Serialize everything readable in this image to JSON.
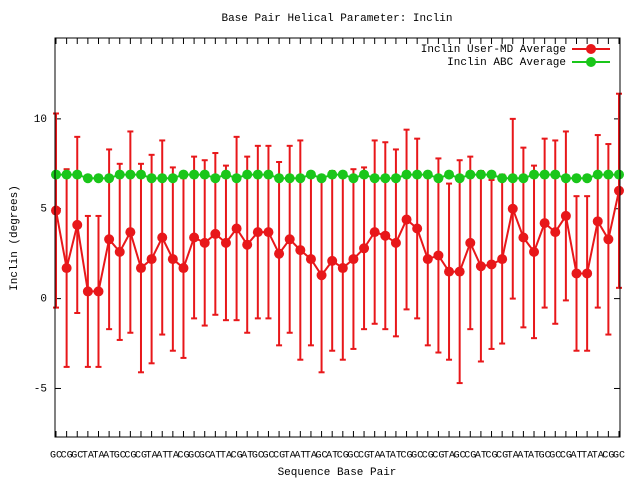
{
  "chart_data": {
    "type": "errorbar-line",
    "title": "Base Pair Helical Parameter: Inclin",
    "x_label": "Sequence Base Pair",
    "y_label": "Inclin (degrees)",
    "categories": [
      "GC",
      "CG",
      "GC",
      "TA",
      "TA",
      "AT",
      "GC",
      "CG",
      "CG",
      "TA",
      "AT",
      "TA",
      "CG",
      "GC",
      "GC",
      "AT",
      "TA",
      "CG",
      "AT",
      "GC",
      "GC",
      "CG",
      "TA",
      "AT",
      "TA",
      "GC",
      "AT",
      "CG",
      "GC",
      "CG",
      "TA",
      "AT",
      "AT",
      "CG",
      "GC",
      "CG",
      "CG",
      "TA",
      "GC",
      "CG",
      "AT",
      "CG",
      "CG",
      "TA",
      "AT",
      "AT",
      "GC",
      "GC",
      "CG",
      "AT",
      "TA",
      "TA",
      "CG",
      "GC"
    ],
    "ylim": [
      -7.7,
      14.5
    ],
    "yticks": [
      -5,
      0,
      5,
      10
    ],
    "legend": "top-right",
    "series": [
      {
        "name": "Inclin User-MD Average",
        "color": "#e8171a",
        "values": [
          4.9,
          1.7,
          4.1,
          0.4,
          0.4,
          3.3,
          2.6,
          3.7,
          1.7,
          2.2,
          3.4,
          2.2,
          1.7,
          3.4,
          3.1,
          3.6,
          3.1,
          3.9,
          3.0,
          3.7,
          3.7,
          2.5,
          3.3,
          2.7,
          2.2,
          1.3,
          2.1,
          1.7,
          2.2,
          2.8,
          3.7,
          3.5,
          3.1,
          4.4,
          3.9,
          2.2,
          2.4,
          1.5,
          1.5,
          3.1,
          1.8,
          1.9,
          2.2,
          5.0,
          3.4,
          2.6,
          4.2,
          3.7,
          4.6,
          1.4,
          1.4,
          4.3,
          3.3,
          6.0
        ],
        "errors": [
          5.4,
          5.5,
          4.9,
          4.2,
          4.2,
          5.0,
          4.9,
          5.6,
          5.8,
          5.8,
          5.4,
          5.1,
          5.0,
          4.5,
          4.6,
          4.5,
          4.3,
          5.1,
          4.9,
          4.8,
          4.8,
          5.1,
          5.2,
          6.1,
          4.8,
          5.4,
          5.0,
          5.1,
          5.0,
          4.5,
          5.1,
          5.2,
          5.2,
          5.0,
          5.0,
          4.8,
          5.4,
          4.9,
          6.2,
          4.8,
          5.3,
          4.7,
          4.7,
          5.0,
          5.0,
          4.8,
          4.7,
          5.1,
          4.7,
          4.3,
          4.3,
          4.8,
          5.3,
          5.4
        ]
      },
      {
        "name": "Inclin ABC Average",
        "color": "#1ac61a",
        "values": [
          6.9,
          6.9,
          6.9,
          6.7,
          6.7,
          6.7,
          6.9,
          6.9,
          6.9,
          6.7,
          6.7,
          6.7,
          6.9,
          6.9,
          6.9,
          6.7,
          6.9,
          6.7,
          6.9,
          6.9,
          6.9,
          6.7,
          6.7,
          6.7,
          6.9,
          6.7,
          6.9,
          6.9,
          6.7,
          6.9,
          6.7,
          6.7,
          6.7,
          6.9,
          6.9,
          6.9,
          6.7,
          6.9,
          6.7,
          6.9,
          6.9,
          6.9,
          6.7,
          6.7,
          6.7,
          6.9,
          6.9,
          6.9,
          6.7,
          6.7,
          6.7,
          6.9,
          6.9,
          6.9
        ]
      }
    ]
  }
}
